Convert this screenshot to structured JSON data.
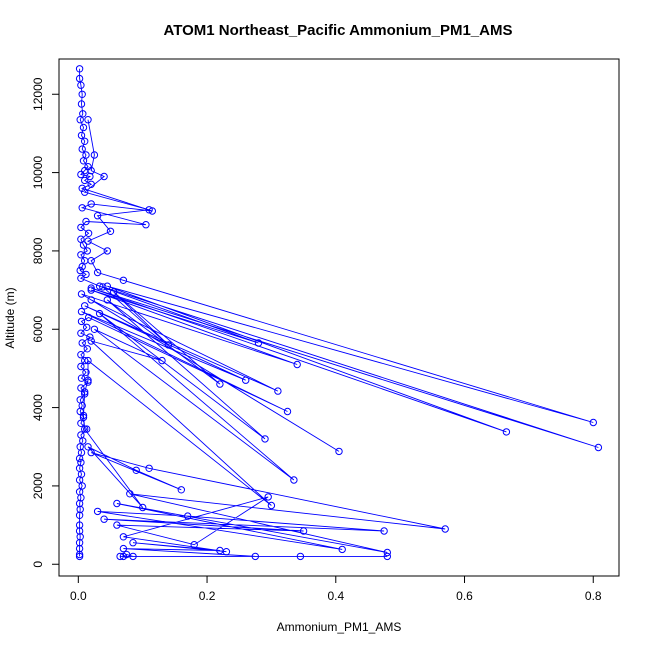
{
  "chart_data": {
    "type": "line",
    "title": "ATOM1 Northeast_Pacific Ammonium_PM1_AMS",
    "xlabel": "Ammonium_PM1_AMS",
    "ylabel": "Altitude (m)",
    "xlim": [
      -0.03,
      0.84
    ],
    "ylim": [
      -300,
      12900
    ],
    "xticks": [
      0.0,
      0.2,
      0.4,
      0.6,
      0.8
    ],
    "xtick_labels": [
      "0.0",
      "0.2",
      "0.4",
      "0.6",
      "0.8"
    ],
    "yticks": [
      0,
      2000,
      4000,
      6000,
      8000,
      10000,
      12000
    ],
    "ytick_labels": [
      "0",
      "2000",
      "4000",
      "6000",
      "8000",
      "10000",
      "12000"
    ],
    "grid": false,
    "color": "#0000ff",
    "marker": "open-circle",
    "series": [
      {
        "points": [
          [
            0.002,
            12650
          ],
          [
            0.002,
            12400
          ],
          [
            0.004,
            12230
          ],
          [
            0.006,
            12000
          ],
          [
            0.005,
            11750
          ],
          [
            0.007,
            11500
          ],
          [
            0.003,
            11350
          ],
          [
            0.008,
            11150
          ],
          [
            0.005,
            10950
          ],
          [
            0.01,
            10800
          ],
          [
            0.006,
            10600
          ],
          [
            0.012,
            10450
          ],
          [
            0.008,
            10300
          ],
          [
            0.015,
            10150
          ],
          [
            0.01,
            10050
          ],
          [
            0.004,
            9950
          ],
          [
            0.018,
            9900
          ],
          [
            0.01,
            9800
          ],
          [
            0.02,
            9700
          ],
          [
            0.006,
            9600
          ],
          [
            0.115,
            9020
          ],
          [
            0.02,
            9200
          ],
          [
            0.006,
            9100
          ],
          [
            0.105,
            8670
          ],
          [
            0.012,
            8750
          ],
          [
            0.004,
            8600
          ],
          [
            0.016,
            8450
          ],
          [
            0.004,
            8300
          ],
          [
            0.008,
            8150
          ],
          [
            0.014,
            8000
          ],
          [
            0.004,
            7900
          ],
          [
            0.01,
            7750
          ],
          [
            0.006,
            7600
          ],
          [
            0.003,
            7500
          ],
          [
            0.012,
            7400
          ],
          [
            0.004,
            7300
          ],
          [
            0.033,
            7100
          ],
          [
            0.28,
            5650
          ],
          [
            0.02,
            7000
          ],
          [
            0.34,
            5100
          ],
          [
            0.005,
            6900
          ],
          [
            0.405,
            2880
          ],
          [
            0.02,
            6750
          ],
          [
            0.31,
            4420
          ],
          [
            0.01,
            6600
          ],
          [
            0.26,
            4700
          ],
          [
            0.005,
            6450
          ],
          [
            0.325,
            3900
          ],
          [
            0.016,
            6300
          ],
          [
            0.005,
            6200
          ],
          [
            0.013,
            6050
          ],
          [
            0.004,
            5900
          ],
          [
            0.018,
            5800
          ],
          [
            0.006,
            5650
          ],
          [
            0.014,
            5500
          ],
          [
            0.004,
            5350
          ],
          [
            0.01,
            5200
          ],
          [
            0.004,
            5050
          ],
          [
            0.012,
            4900
          ],
          [
            0.005,
            4750
          ],
          [
            0.015,
            4650
          ],
          [
            0.004,
            4500
          ],
          [
            0.01,
            4350
          ],
          [
            0.003,
            4200
          ],
          [
            0.006,
            4050
          ],
          [
            0.003,
            3900
          ],
          [
            0.008,
            3750
          ],
          [
            0.004,
            3600
          ],
          [
            0.013,
            3450
          ],
          [
            0.004,
            3300
          ],
          [
            0.007,
            3150
          ],
          [
            0.003,
            3000
          ],
          [
            0.005,
            2850
          ],
          [
            0.002,
            2700
          ],
          [
            0.004,
            2600
          ],
          [
            0.002,
            2450
          ],
          [
            0.005,
            2300
          ],
          [
            0.002,
            2150
          ],
          [
            0.006,
            2000
          ],
          [
            0.002,
            1850
          ],
          [
            0.004,
            1700
          ],
          [
            0.002,
            1550
          ],
          [
            0.003,
            1400
          ],
          [
            0.002,
            1250
          ],
          [
            0.002,
            1000
          ],
          [
            0.002,
            850
          ],
          [
            0.003,
            700
          ],
          [
            0.002,
            550
          ],
          [
            0.002,
            400
          ],
          [
            0.002,
            250
          ],
          [
            0.002,
            200
          ]
        ]
      },
      {
        "points": [
          [
            0.015,
            11350
          ],
          [
            0.025,
            10450
          ],
          [
            0.02,
            10050
          ],
          [
            0.04,
            9900
          ],
          [
            0.01,
            9500
          ],
          [
            0.11,
            9050
          ],
          [
            0.03,
            8900
          ],
          [
            0.05,
            8500
          ],
          [
            0.015,
            8250
          ],
          [
            0.045,
            8000
          ],
          [
            0.02,
            7750
          ],
          [
            0.03,
            7450
          ],
          [
            0.07,
            7250
          ],
          [
            0.8,
            3620
          ],
          [
            0.045,
            7100
          ],
          [
            0.665,
            3380
          ],
          [
            0.02,
            7050
          ],
          [
            0.808,
            2980
          ],
          [
            0.038,
            7080
          ],
          [
            0.14,
            5600
          ],
          [
            0.055,
            6950
          ],
          [
            0.22,
            4600
          ],
          [
            0.045,
            6750
          ],
          [
            0.29,
            3200
          ],
          [
            0.033,
            6400
          ],
          [
            0.335,
            2150
          ],
          [
            0.025,
            6000
          ],
          [
            0.13,
            5200
          ],
          [
            0.02,
            5700
          ],
          [
            0.3,
            1500
          ],
          [
            0.015,
            5200
          ],
          [
            0.015,
            4700
          ],
          [
            0.01,
            4400
          ],
          [
            0.008,
            3800
          ],
          [
            0.01,
            3450
          ],
          [
            0.1,
            1450
          ],
          [
            0.015,
            3000
          ],
          [
            0.09,
            2400
          ],
          [
            0.16,
            1900
          ],
          [
            0.02,
            2850
          ],
          [
            0.11,
            2450
          ],
          [
            0.57,
            900
          ],
          [
            0.08,
            1800
          ],
          [
            0.48,
            300
          ],
          [
            0.06,
            1550
          ],
          [
            0.41,
            380
          ],
          [
            0.03,
            1350
          ],
          [
            0.17,
            1230
          ],
          [
            0.475,
            850
          ],
          [
            0.04,
            1150
          ],
          [
            0.35,
            850
          ],
          [
            0.06,
            1000
          ],
          [
            0.18,
            500
          ],
          [
            0.295,
            1720
          ],
          [
            0.07,
            700
          ],
          [
            0.23,
            320
          ],
          [
            0.085,
            550
          ],
          [
            0.22,
            350
          ],
          [
            0.07,
            400
          ],
          [
            0.275,
            200
          ],
          [
            0.065,
            200
          ],
          [
            0.345,
            200
          ],
          [
            0.48,
            200
          ],
          [
            0.085,
            200
          ],
          [
            0.075,
            250
          ],
          [
            0.07,
            200
          ]
        ]
      }
    ]
  }
}
